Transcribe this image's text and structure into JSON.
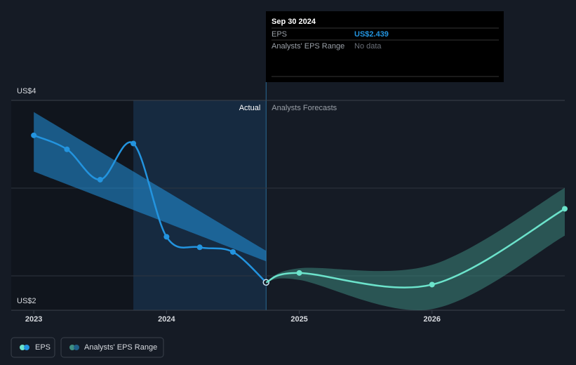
{
  "chart_data": {
    "type": "line",
    "xlim": [
      2022.83,
      2027.0
    ],
    "xticks": [
      2023,
      2024,
      2025,
      2026
    ],
    "ylim": [
      2.2,
      4.0
    ],
    "yticks": [
      {
        "value": 2.2,
        "label": "US$2"
      },
      {
        "value": 4,
        "label": "US$4"
      }
    ],
    "sections": [
      "Actual",
      "Analysts Forecasts"
    ],
    "highlight": [
      2023.75,
      2024.75
    ],
    "series": [
      {
        "name": "EPS",
        "color": "#2394df",
        "x": [
          2023.0,
          2023.25,
          2023.5,
          2023.75,
          2024.0,
          2024.25,
          2024.5,
          2024.75
        ],
        "values": [
          3.7,
          3.58,
          3.32,
          3.63,
          2.83,
          2.74,
          2.7,
          2.439
        ]
      },
      {
        "color": "#6ce3cb",
        "x": [
          2024.75,
          2025.0,
          2026.0,
          2027.0
        ],
        "values": [
          2.439,
          2.52,
          2.42,
          3.07
        ]
      }
    ],
    "bands": [
      {
        "color": "#2394df",
        "x": [
          2023.0,
          2024.75
        ],
        "upper": [
          3.9,
          2.71
        ],
        "lower": [
          3.39,
          2.62
        ]
      },
      {
        "name": "Analysts' EPS Range",
        "color": "#3f8f83",
        "x": [
          2024.75,
          2025.0,
          2026.0,
          2027.0
        ],
        "upper": [
          2.439,
          2.56,
          2.59,
          3.25
        ],
        "lower": [
          2.439,
          2.46,
          2.21,
          2.84
        ]
      }
    ]
  },
  "tooltip": {
    "title": "Sep 30 2024",
    "eps_label": "EPS",
    "eps_value": "US$2.439",
    "range_label": "Analysts' EPS Range",
    "range_value": "No data"
  }
}
